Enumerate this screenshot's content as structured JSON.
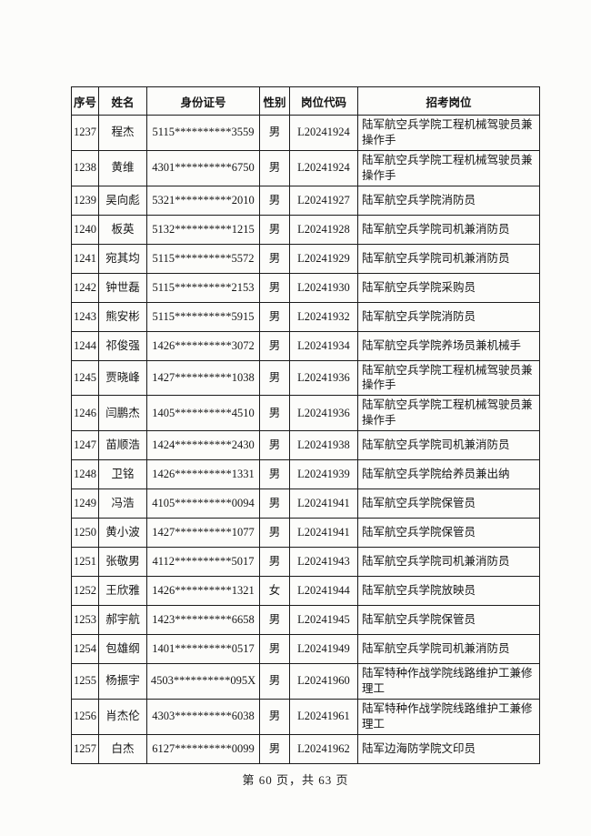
{
  "table": {
    "headers": [
      "序号",
      "姓名",
      "身份证号",
      "性别",
      "岗位代码",
      "招考岗位"
    ],
    "rows": [
      [
        "1237",
        "程杰",
        "5115**********3559",
        "男",
        "L20241924",
        "陆军航空兵学院工程机械驾驶员兼操作手"
      ],
      [
        "1238",
        "黄维",
        "4301**********6750",
        "男",
        "L20241924",
        "陆军航空兵学院工程机械驾驶员兼操作手"
      ],
      [
        "1239",
        "吴向彪",
        "5321**********2010",
        "男",
        "L20241927",
        "陆军航空兵学院消防员"
      ],
      [
        "1240",
        "板英",
        "5132**********1215",
        "男",
        "L20241928",
        "陆军航空兵学院司机兼消防员"
      ],
      [
        "1241",
        "宛其均",
        "5115**********5572",
        "男",
        "L20241929",
        "陆军航空兵学院司机兼消防员"
      ],
      [
        "1242",
        "钟世磊",
        "5115**********2153",
        "男",
        "L20241930",
        "陆军航空兵学院采购员"
      ],
      [
        "1243",
        "熊安彬",
        "5115**********5915",
        "男",
        "L20241932",
        "陆军航空兵学院消防员"
      ],
      [
        "1244",
        "祁俊强",
        "1426**********3072",
        "男",
        "L20241934",
        "陆军航空兵学院养场员兼机械手"
      ],
      [
        "1245",
        "贾晓峰",
        "1427**********1038",
        "男",
        "L20241936",
        "陆军航空兵学院工程机械驾驶员兼操作手"
      ],
      [
        "1246",
        "闫鹏杰",
        "1405**********4510",
        "男",
        "L20241936",
        "陆军航空兵学院工程机械驾驶员兼操作手"
      ],
      [
        "1247",
        "苗顺浩",
        "1424**********2430",
        "男",
        "L20241938",
        "陆军航空兵学院司机兼消防员"
      ],
      [
        "1248",
        "卫铭",
        "1426**********1331",
        "男",
        "L20241939",
        "陆军航空兵学院给养员兼出纳"
      ],
      [
        "1249",
        "冯浩",
        "4105**********0094",
        "男",
        "L20241941",
        "陆军航空兵学院保管员"
      ],
      [
        "1250",
        "黄小波",
        "1427**********1077",
        "男",
        "L20241941",
        "陆军航空兵学院保管员"
      ],
      [
        "1251",
        "张敬男",
        "4112**********5017",
        "男",
        "L20241943",
        "陆军航空兵学院司机兼消防员"
      ],
      [
        "1252",
        "王欣雅",
        "1426**********1321",
        "女",
        "L20241944",
        "陆军航空兵学院放映员"
      ],
      [
        "1253",
        "郝宇航",
        "1423**********6658",
        "男",
        "L20241945",
        "陆军航空兵学院保管员"
      ],
      [
        "1254",
        "包雄纲",
        "1401**********0517",
        "男",
        "L20241949",
        "陆军航空兵学院司机兼消防员"
      ],
      [
        "1255",
        "杨振宇",
        "4503**********095X",
        "男",
        "L20241960",
        "陆军特种作战学院线路维护工兼修理工"
      ],
      [
        "1256",
        "肖杰伦",
        "4303**********6038",
        "男",
        "L20241961",
        "陆军特种作战学院线路维护工兼修理工"
      ],
      [
        "1257",
        "白杰",
        "6127**********0099",
        "男",
        "L20241962",
        "陆军边海防学院文印员"
      ]
    ]
  },
  "footer": {
    "page_indicator": "第 60 页，共 63 页"
  }
}
